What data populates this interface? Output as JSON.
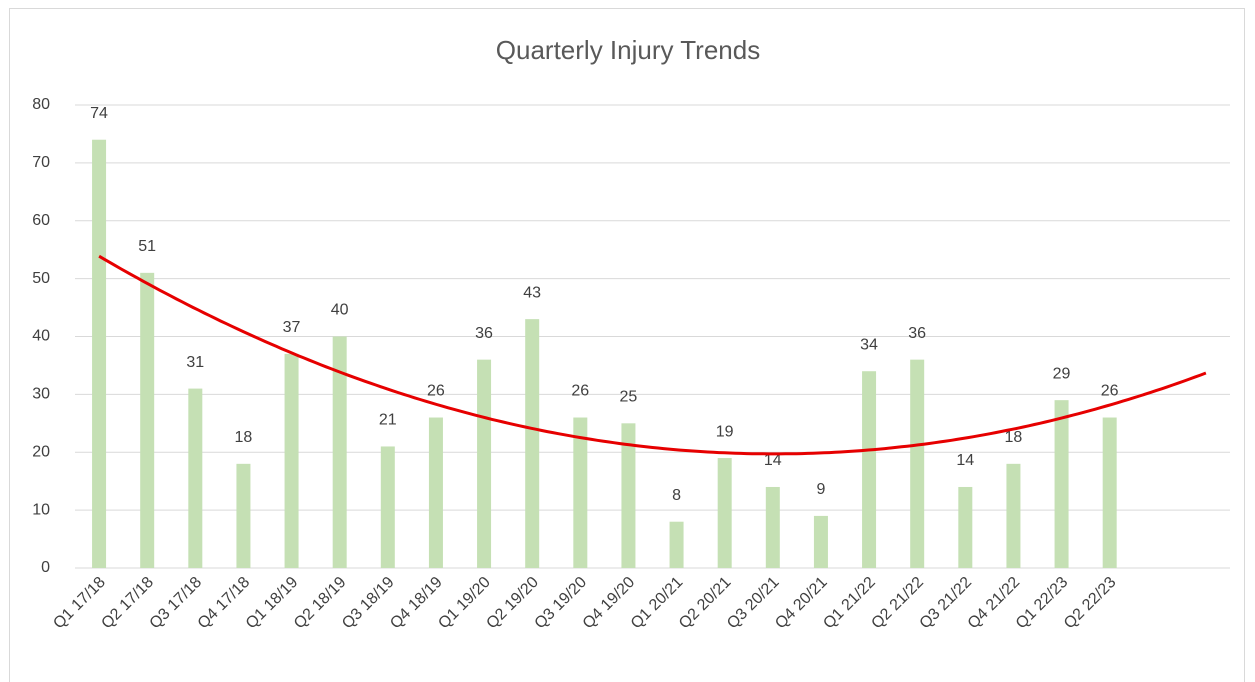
{
  "chart_data": {
    "type": "bar",
    "title": "Quarterly Injury Trends",
    "categories": [
      "Q1 17/18",
      "Q2 17/18",
      "Q3 17/18",
      "Q4 17/18",
      "Q1 18/19",
      "Q2 18/19",
      "Q3 18/19",
      "Q4 18/19",
      "Q1 19/20",
      "Q2 19/20",
      "Q3 19/20",
      "Q4 19/20",
      "Q1 20/21",
      "Q2 20/21",
      "Q3 20/21",
      "Q4 20/21",
      "Q1 21/22",
      "Q2 21/22",
      "Q3 21/22",
      "Q4 21/22",
      "Q1 22/23",
      "Q2 22/23",
      null,
      null
    ],
    "values": [
      74,
      51,
      31,
      18,
      37,
      40,
      21,
      26,
      36,
      43,
      26,
      25,
      8,
      19,
      14,
      9,
      34,
      36,
      14,
      18,
      29,
      26,
      null,
      null
    ],
    "color": "#c5e0b4",
    "ylim": [
      0,
      80
    ],
    "yticks": [
      0,
      10,
      20,
      30,
      40,
      50,
      60,
      70,
      80
    ],
    "grid": true,
    "trendline": {
      "type": "polynomial",
      "order": 2,
      "color": "#e60000"
    }
  }
}
